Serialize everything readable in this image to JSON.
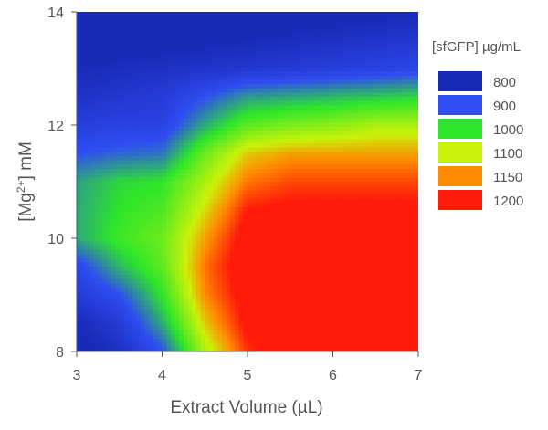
{
  "chart_data": {
    "type": "heatmap",
    "xlabel": "Extract Volume (µL)",
    "ylabel_main": "[Mg",
    "ylabel_sup": "2+",
    "ylabel_end": "] mM",
    "xticks": [
      "3",
      "4",
      "5",
      "6",
      "7"
    ],
    "yticks": [
      "8",
      "10",
      "12",
      "14"
    ],
    "xlim": [
      3,
      7
    ],
    "ylim": [
      8,
      14
    ],
    "legend_title": "[sfGFP] µg/mL",
    "legend": [
      {
        "label": "800",
        "color": "#1a2ab8"
      },
      {
        "label": "900",
        "color": "#2f4df2"
      },
      {
        "label": "1000",
        "color": "#2ee62a"
      },
      {
        "label": "1100",
        "color": "#c9f20a"
      },
      {
        "label": "1150",
        "color": "#ff8c00"
      },
      {
        "label": "1200",
        "color": "#ff1a0a"
      }
    ],
    "x": [
      3,
      3.5,
      4,
      4.5,
      5,
      5.5,
      6,
      6.5,
      7
    ],
    "y": [
      8,
      8.5,
      9,
      9.5,
      10,
      10.5,
      11,
      11.5,
      12,
      12.5,
      13,
      13.5,
      14
    ],
    "z": [
      [
        780,
        820,
        900,
        1080,
        1190,
        1220,
        1240,
        1250,
        1250
      ],
      [
        800,
        850,
        960,
        1120,
        1210,
        1230,
        1240,
        1250,
        1250
      ],
      [
        850,
        900,
        1000,
        1150,
        1220,
        1240,
        1240,
        1250,
        1250
      ],
      [
        880,
        970,
        1030,
        1160,
        1230,
        1240,
        1240,
        1240,
        1240
      ],
      [
        960,
        1010,
        1040,
        1140,
        1220,
        1230,
        1230,
        1230,
        1230
      ],
      [
        960,
        1000,
        1020,
        1110,
        1200,
        1210,
        1210,
        1210,
        1210
      ],
      [
        955,
        990,
        1000,
        1080,
        1160,
        1180,
        1180,
        1180,
        1180
      ],
      [
        900,
        915,
        925,
        1040,
        1120,
        1140,
        1140,
        1140,
        1140
      ],
      [
        860,
        870,
        870,
        960,
        1030,
        1050,
        1060,
        1080,
        1080
      ],
      [
        820,
        840,
        850,
        900,
        950,
        960,
        970,
        980,
        990
      ],
      [
        800,
        810,
        820,
        830,
        840,
        850,
        860,
        870,
        880
      ],
      [
        760,
        770,
        780,
        790,
        800,
        810,
        820,
        830,
        840
      ],
      [
        740,
        745,
        750,
        755,
        760,
        770,
        780,
        790,
        800
      ]
    ]
  }
}
